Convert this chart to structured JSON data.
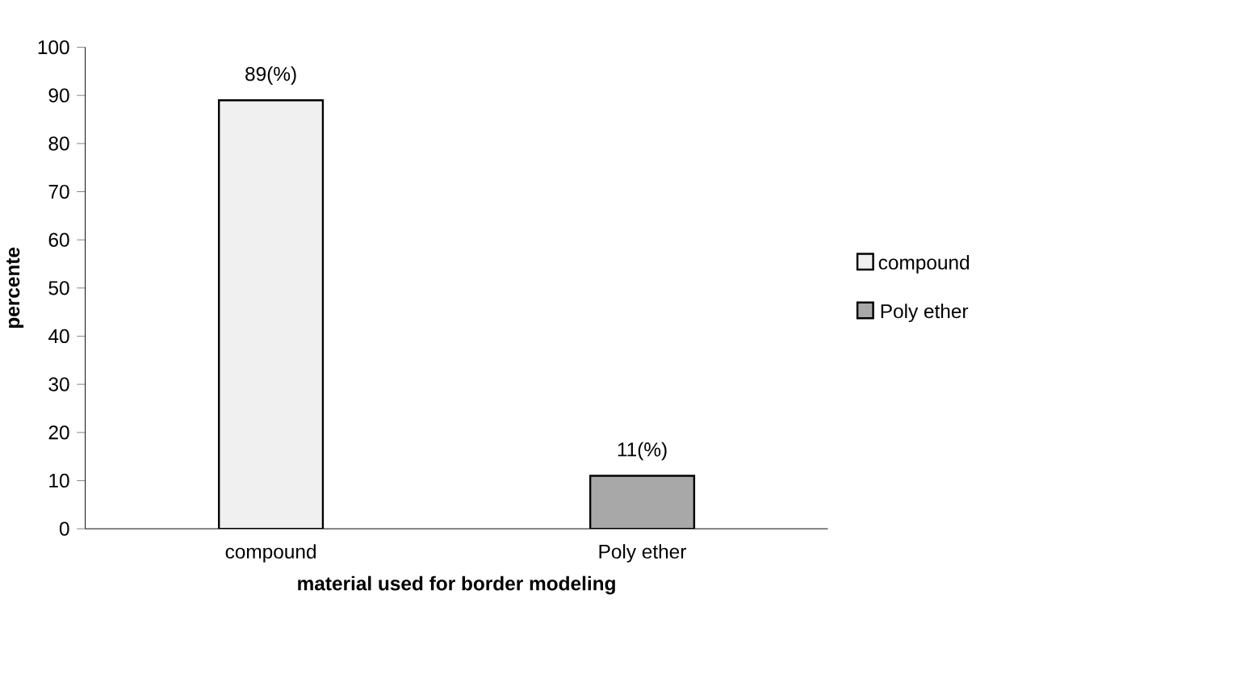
{
  "chart_data": {
    "type": "bar",
    "xlabel": "material used for border modeling",
    "ylabel": "percente",
    "categories": [
      "compound",
      "Poly ether"
    ],
    "series": [
      {
        "name": "compound",
        "color": "#f0f0f0",
        "values": [
          89,
          null
        ],
        "value_labels": [
          "89(%)",
          null
        ]
      },
      {
        "name": "Poly ether",
        "color": "#a8a8a8",
        "values": [
          null,
          11
        ],
        "value_labels": [
          null,
          "11(%)"
        ]
      }
    ],
    "ylim": [
      0,
      100
    ],
    "yticks": [
      0,
      10,
      20,
      30,
      40,
      50,
      60,
      70,
      80,
      90,
      100
    ],
    "grid": false,
    "legend": "right"
  }
}
